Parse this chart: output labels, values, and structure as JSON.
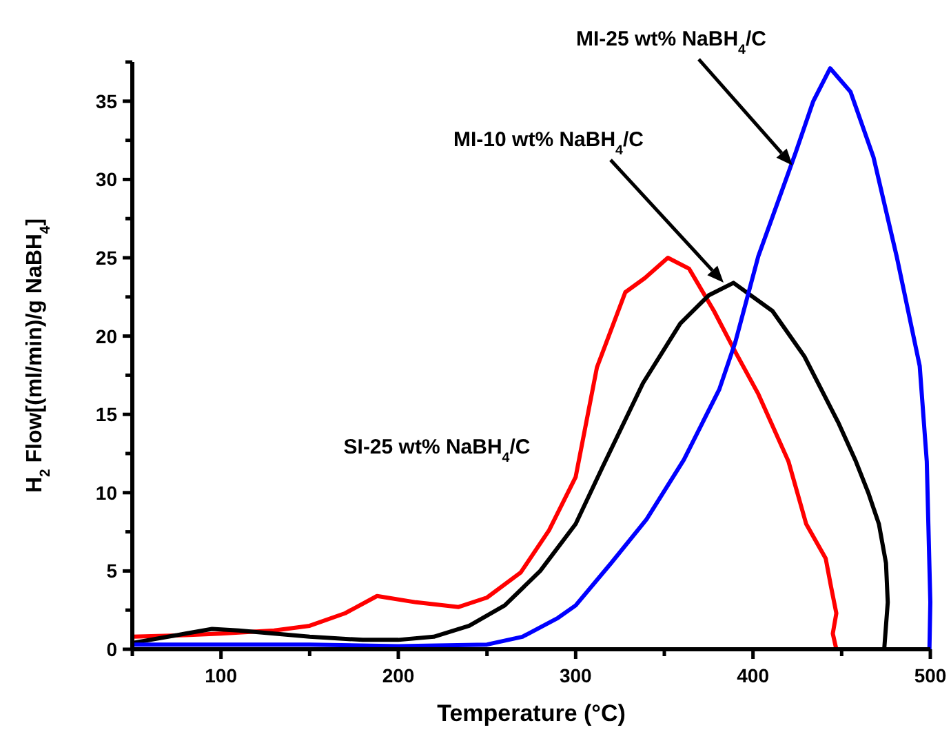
{
  "chart_data": {
    "type": "line",
    "xlabel": "Temperature (°C)",
    "ylabel": "H$_{2}$ Flow[(ml/min)/g NaBH$_{4}$]",
    "xlim": [
      50,
      500
    ],
    "ylim": [
      0,
      37.5
    ],
    "xticks": [
      {
        "value": 50,
        "label": null
      },
      100,
      {
        "value": 150,
        "label": null
      },
      200,
      {
        "value": 250,
        "label": null
      },
      300,
      {
        "value": 350,
        "label": null
      },
      400,
      {
        "value": 450,
        "label": null
      },
      500
    ],
    "yticks": [
      0,
      {
        "value": 2.5,
        "label": null
      },
      5,
      {
        "value": 7.5,
        "label": null
      },
      10,
      {
        "value": 12.5,
        "label": null
      },
      15,
      {
        "value": 17.5,
        "label": null
      },
      20,
      {
        "value": 22.5,
        "label": null
      },
      25,
      {
        "value": 27.5,
        "label": null
      },
      30,
      {
        "value": 32.5,
        "label": null
      },
      35,
      {
        "value": 37.5,
        "label": null
      }
    ],
    "grid": false,
    "marker": "none",
    "line_style": "solid",
    "series": [
      {
        "color": "#ff0000",
        "x": [
          50,
          80,
          100,
          130,
          150,
          170,
          188,
          210,
          234,
          250,
          269,
          285,
          300,
          312,
          328,
          339,
          352,
          364,
          378,
          390,
          403,
          420,
          430,
          441,
          444,
          447,
          445,
          447
        ],
        "values": [
          0.8,
          0.9,
          1.0,
          1.2,
          1.5,
          2.3,
          3.4,
          3.0,
          2.7,
          3.3,
          4.9,
          7.6,
          11,
          18,
          22.8,
          23.7,
          25,
          24.3,
          21.6,
          19,
          16.3,
          12,
          8,
          5.8,
          4,
          2.3,
          1,
          0
        ]
      },
      {
        "color": "#000000",
        "x": [
          50,
          80,
          95,
          110,
          130,
          150,
          180,
          200,
          220,
          240,
          260,
          280,
          300,
          315,
          338,
          359,
          375,
          389,
          411,
          429,
          448,
          458,
          465,
          471,
          475,
          476,
          474
        ],
        "values": [
          0.4,
          1.0,
          1.3,
          1.2,
          1.0,
          0.8,
          0.6,
          0.6,
          0.8,
          1.5,
          2.8,
          5.0,
          8.0,
          11.6,
          17,
          20.8,
          22.6,
          23.4,
          21.6,
          18.7,
          14.5,
          12,
          10,
          8,
          5.5,
          3,
          0
        ]
      },
      {
        "color": "#0000ff",
        "x": [
          50,
          100,
          150,
          200,
          250,
          270,
          290,
          300,
          320,
          340,
          361,
          381,
          390,
          403,
          424,
          434,
          443.5,
          455,
          468,
          481,
          494,
          498,
          500,
          499.5
        ],
        "values": [
          0.3,
          0.3,
          0.3,
          0.2,
          0.3,
          0.8,
          2,
          2.8,
          5.5,
          8.3,
          12.1,
          16.6,
          19.6,
          25.1,
          31.7,
          35,
          37.1,
          35.6,
          31.4,
          25.1,
          18.1,
          12,
          3,
          0
        ]
      }
    ],
    "annotations": [
      "MI-25 wt% NaBH$_{4}$/C",
      "MI-10 wt% NaBH$_{4}$/C",
      "SI-25 wt% NaBH$_{4}$/C"
    ]
  }
}
